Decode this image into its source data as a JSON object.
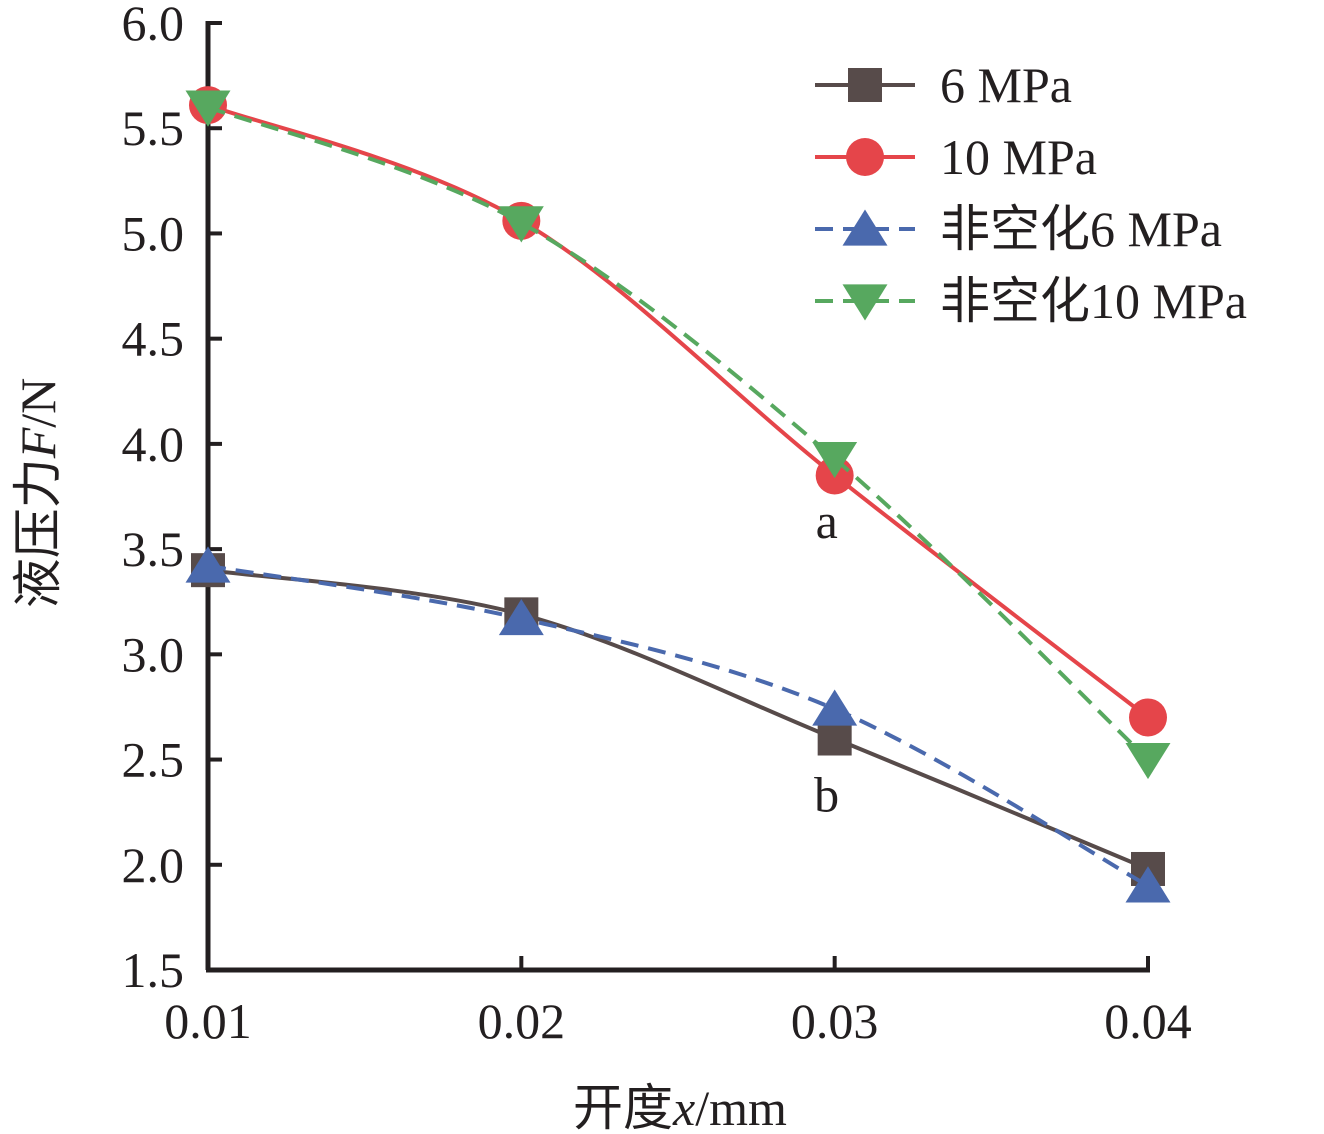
{
  "chart_data": {
    "type": "line",
    "title": "",
    "xlabel": "开度x/mm",
    "ylabel": "液压力F/N",
    "xlabel_parts": {
      "prefix": "开度",
      "var": "x",
      "suffix": "/mm"
    },
    "ylabel_parts": {
      "prefix": "液压力",
      "var": "F",
      "suffix": "/N"
    },
    "x": [
      0.01,
      0.02,
      0.03,
      0.04
    ],
    "xticks": [
      "0.01",
      "0.02",
      "0.03",
      "0.04"
    ],
    "yticks": [
      "1.5",
      "2.0",
      "2.5",
      "3.0",
      "3.5",
      "4.0",
      "4.5",
      "5.0",
      "5.5",
      "6.0"
    ],
    "xlim": [
      0.01,
      0.04
    ],
    "ylim": [
      1.5,
      6.0
    ],
    "grid": false,
    "legend_position": "top-right",
    "series": [
      {
        "name": "6 MPa",
        "values": [
          3.4,
          3.19,
          2.6,
          1.98
        ],
        "color": "#574b4a",
        "marker": "square",
        "dash": "solid"
      },
      {
        "name": "10 MPa",
        "values": [
          5.61,
          5.06,
          3.85,
          2.7
        ],
        "color": "#e5454a",
        "marker": "circle",
        "dash": "solid"
      },
      {
        "name": "非空化6 MPa",
        "values": [
          3.42,
          3.17,
          2.74,
          1.9
        ],
        "color": "#4a69ad",
        "marker": "triangle-up",
        "dash": "dashed"
      },
      {
        "name": "非空化10 MPa",
        "values": [
          5.6,
          5.05,
          3.93,
          2.5
        ],
        "color": "#57a85f",
        "marker": "triangle-down",
        "dash": "dashed"
      }
    ],
    "annotations": [
      {
        "text": "a",
        "x": 0.03,
        "y": 3.6
      },
      {
        "text": "b",
        "x": 0.03,
        "y": 2.3
      }
    ]
  }
}
